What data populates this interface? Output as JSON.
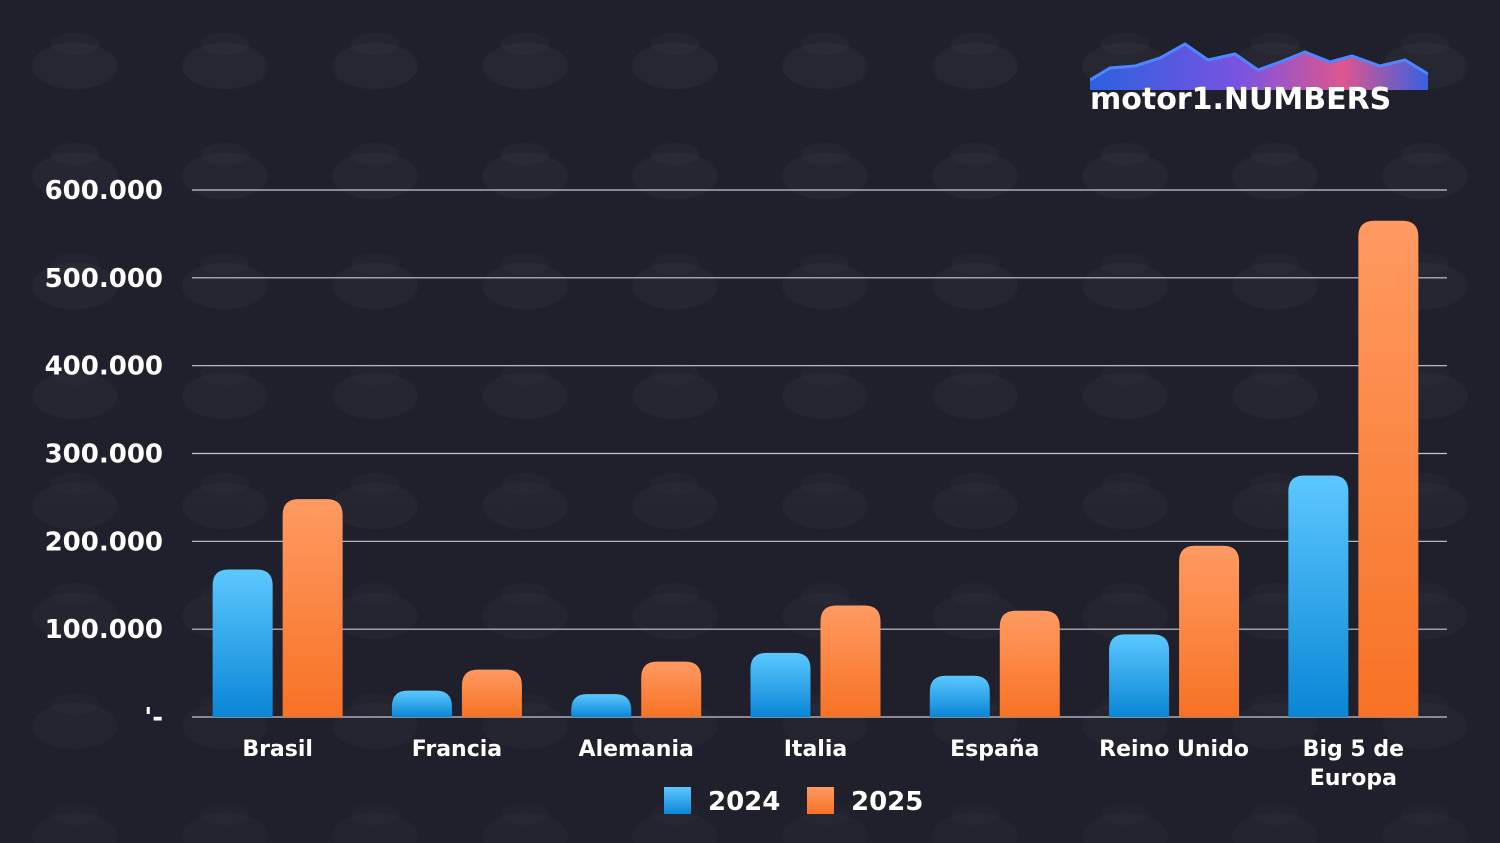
{
  "logo": {
    "text": "motor1.NUMBERS"
  },
  "colors": {
    "series_2024_top": "#5cc8ff",
    "series_2024_bottom": "#0a86d6",
    "series_2025_top": "#ff9a62",
    "series_2025_bottom": "#f77224",
    "grid": "#c8c8d2",
    "text": "#ffffff"
  },
  "chart_data": {
    "type": "bar",
    "title": "",
    "xlabel": "",
    "ylabel": "",
    "ylim": [
      0,
      600000
    ],
    "yticks": [
      0,
      100000,
      200000,
      300000,
      400000,
      500000,
      600000
    ],
    "ytick_labels": [
      "'-",
      "100.000",
      "200.000",
      "300.000",
      "400.000",
      "500.000",
      "600.000"
    ],
    "grid": true,
    "legend_position": "bottom-center",
    "categories": [
      "Brasil",
      "Francia",
      "Alemania",
      "Italia",
      "España",
      "Reino Unido",
      "Big 5 de Europa"
    ],
    "series": [
      {
        "name": "2024",
        "values": [
          168000,
          30000,
          26000,
          73000,
          47000,
          94000,
          275000
        ]
      },
      {
        "name": "2025",
        "values": [
          248000,
          54000,
          63000,
          127000,
          121000,
          195000,
          565000
        ]
      }
    ]
  }
}
